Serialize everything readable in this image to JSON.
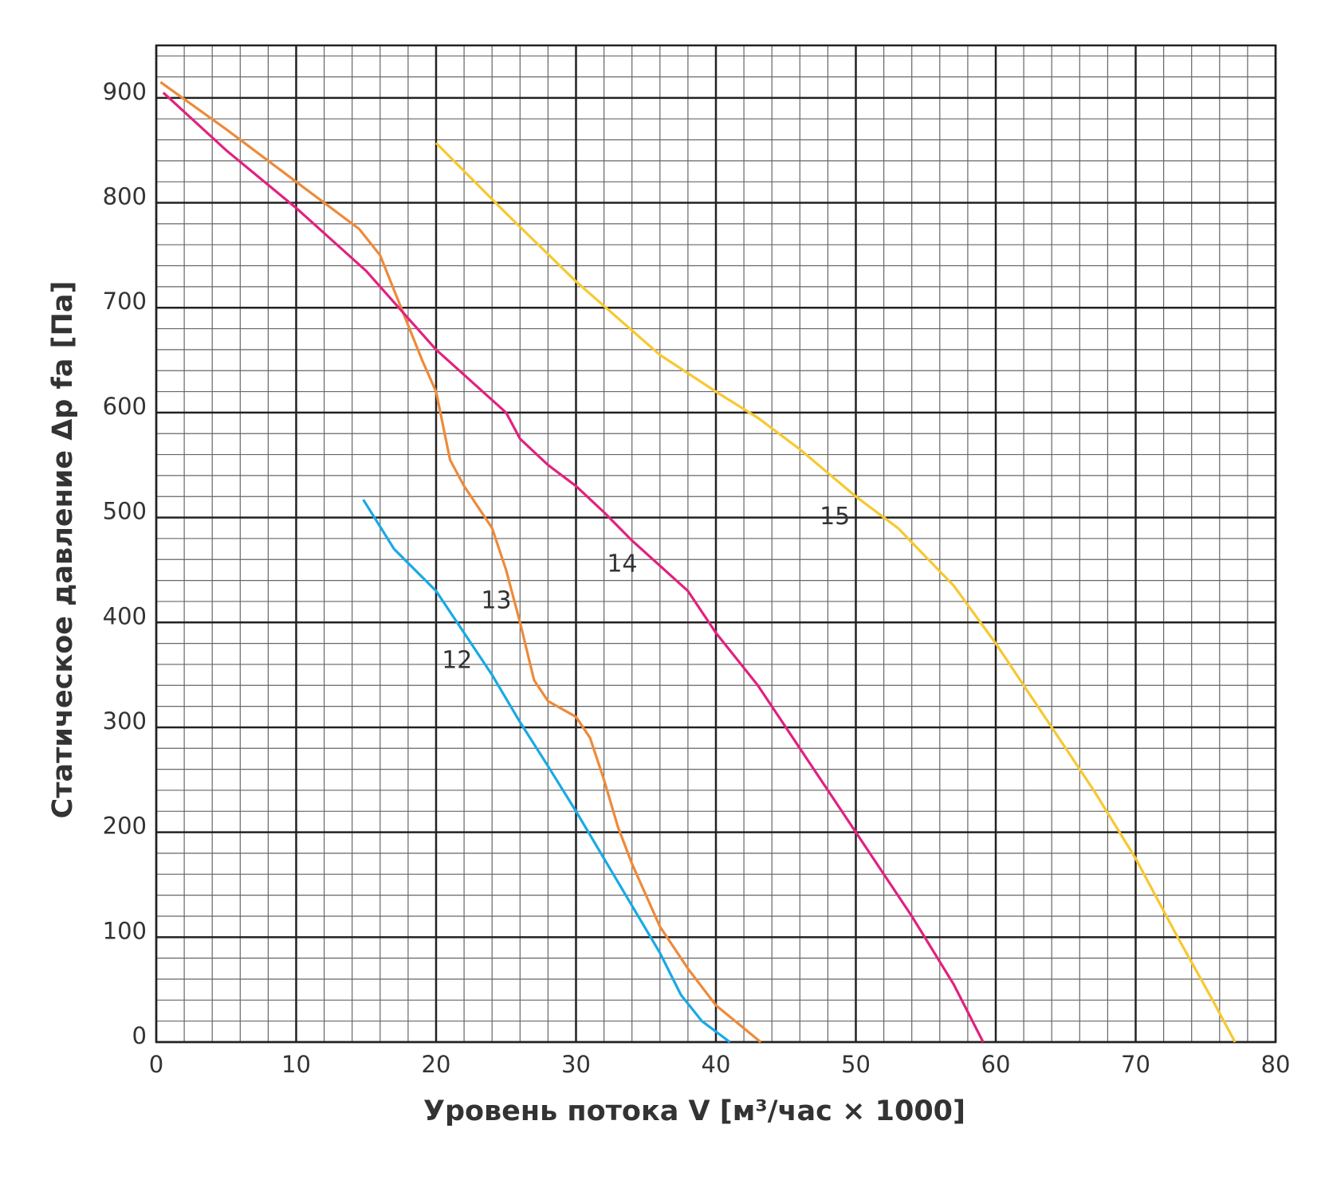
{
  "chart_data": {
    "type": "line",
    "xlabel": "Уровень потока V [м³/час × 1000]",
    "ylabel": "Статическое давление Δp fa [Па]",
    "xlim": [
      0,
      80
    ],
    "ylim": [
      0,
      950
    ],
    "xticks": [
      0,
      10,
      20,
      30,
      40,
      50,
      60,
      70,
      80
    ],
    "yticks": [
      0,
      100,
      200,
      300,
      400,
      500,
      600,
      700,
      800,
      900
    ],
    "xminorticks": [
      0,
      2,
      4,
      6,
      8,
      10,
      12,
      14,
      16,
      18,
      20,
      22,
      24,
      26,
      28,
      30,
      32,
      34,
      36,
      38,
      40,
      42,
      44,
      46,
      48,
      50,
      52,
      54,
      56,
      58,
      60,
      62,
      64,
      66,
      68,
      70,
      72,
      74,
      76,
      78,
      80
    ],
    "yminorticks": [
      0,
      20,
      40,
      60,
      80,
      100,
      120,
      140,
      160,
      180,
      200,
      220,
      240,
      260,
      280,
      300,
      320,
      340,
      360,
      380,
      400,
      420,
      440,
      460,
      480,
      500,
      520,
      540,
      560,
      580,
      600,
      620,
      640,
      660,
      680,
      700,
      720,
      740,
      760,
      780,
      800,
      820,
      840,
      860,
      880,
      900,
      920,
      940
    ],
    "grid": true,
    "series": [
      {
        "name": "12",
        "color": "#1aa9e6",
        "x": [
          14.8,
          17,
          20,
          22,
          24,
          26,
          28,
          30,
          32,
          34,
          36,
          37.5,
          39,
          41
        ],
        "values": [
          517,
          470,
          430,
          390,
          350,
          305,
          263,
          220,
          175,
          130,
          85,
          45,
          20,
          0
        ]
      },
      {
        "name": "13",
        "color": "#ee8a3a",
        "x": [
          0.3,
          5,
          10,
          14.5,
          16,
          17.5,
          19,
          20,
          21,
          22,
          24,
          25,
          26,
          27,
          28,
          30,
          31,
          32,
          33,
          34,
          36,
          38,
          40,
          43.2
        ],
        "values": [
          915,
          870,
          820,
          775,
          750,
          700,
          650,
          620,
          555,
          530,
          490,
          450,
          400,
          345,
          325,
          310,
          290,
          250,
          205,
          170,
          110,
          70,
          35,
          0
        ]
      },
      {
        "name": "14",
        "color": "#e2217f",
        "x": [
          0.5,
          5,
          10,
          15,
          18,
          20,
          25,
          26,
          28,
          30,
          32,
          34,
          38,
          40,
          43,
          46,
          50,
          54,
          57,
          59.1
        ],
        "values": [
          905,
          850,
          795,
          735,
          690,
          660,
          600,
          575,
          550,
          530,
          505,
          478,
          430,
          390,
          340,
          280,
          200,
          120,
          55,
          0
        ]
      },
      {
        "name": "15",
        "color": "#f7c831",
        "x": [
          20,
          25,
          30,
          33,
          36,
          40,
          43,
          46,
          50,
          53,
          57,
          60,
          64,
          67,
          70,
          73,
          75.5,
          77.1
        ],
        "values": [
          857,
          790,
          725,
          690,
          655,
          620,
          595,
          565,
          520,
          490,
          435,
          380,
          300,
          240,
          175,
          100,
          40,
          0
        ]
      }
    ]
  }
}
